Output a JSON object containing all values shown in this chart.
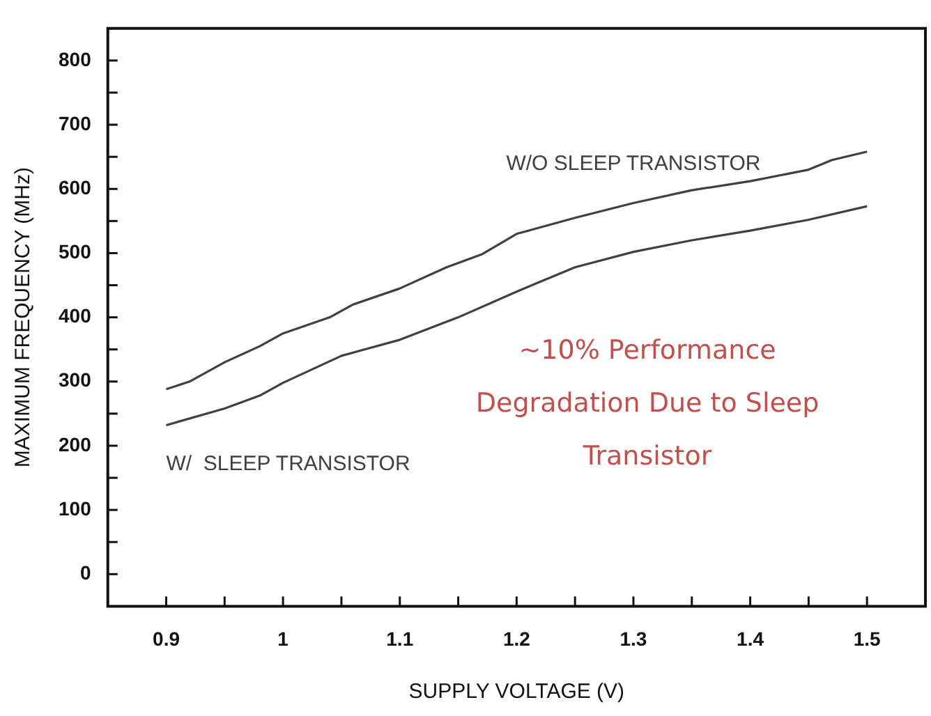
{
  "chart_data": {
    "type": "line",
    "xlabel": "SUPPLY VOLTAGE (V)",
    "ylabel": "MAXIMUM FREQUENCY (MHz)",
    "series": [
      {
        "name": "W/O SLEEP TRANSISTOR",
        "color": "#404040",
        "x": [
          0.9,
          0.92,
          0.95,
          0.98,
          1.0,
          1.04,
          1.06,
          1.1,
          1.14,
          1.17,
          1.2,
          1.25,
          1.3,
          1.35,
          1.4,
          1.45,
          1.47,
          1.5
        ],
        "values": [
          288,
          300,
          330,
          355,
          375,
          400,
          420,
          445,
          478,
          498,
          530,
          555,
          578,
          598,
          612,
          630,
          645,
          658
        ]
      },
      {
        "name": "W/  SLEEP TRANSISTOR",
        "color": "#404040",
        "x": [
          0.9,
          0.95,
          0.98,
          1.0,
          1.05,
          1.1,
          1.15,
          1.2,
          1.25,
          1.3,
          1.35,
          1.4,
          1.45,
          1.5
        ],
        "values": [
          232,
          258,
          278,
          298,
          340,
          365,
          400,
          440,
          478,
          502,
          520,
          535,
          552,
          573
        ]
      }
    ],
    "annotations": [
      "~10% Performance Degradation Due to Sleep Transistor"
    ],
    "xlim": [
      0.85,
      1.55
    ],
    "xticks": [
      0.9,
      {
        "value": 0.95,
        "label": null
      },
      1,
      {
        "value": 1.05,
        "label": null
      },
      1.1,
      {
        "value": 1.15,
        "label": null
      },
      1.2,
      {
        "value": 1.25,
        "label": null
      },
      1.3,
      {
        "value": 1.35,
        "label": null
      },
      1.4,
      {
        "value": 1.45,
        "label": null
      },
      1.5
    ],
    "ylim": [
      -50,
      850
    ],
    "yticks": [
      0,
      {
        "value": 50,
        "label": null
      },
      100,
      {
        "value": 150,
        "label": null
      },
      200,
      {
        "value": 250,
        "label": null
      },
      300,
      {
        "value": 350,
        "label": null
      },
      400,
      {
        "value": 450,
        "label": null
      },
      500,
      {
        "value": 550,
        "label": null
      },
      600,
      {
        "value": 650,
        "label": null
      },
      700,
      {
        "value": 750,
        "label": null
      },
      800
    ],
    "grid": false,
    "legend": false,
    "marker": "none",
    "line_style": "solid"
  }
}
